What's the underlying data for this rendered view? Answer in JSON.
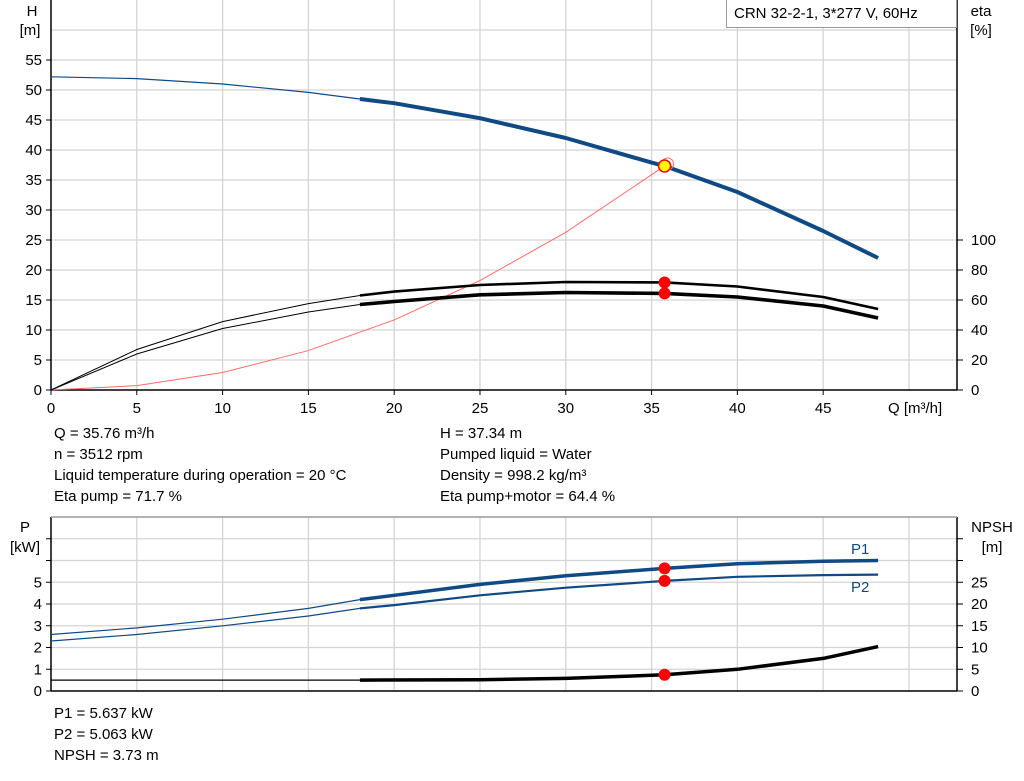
{
  "chart_data": [
    {
      "type": "line",
      "title": "CRN 32-2-1, 3*277 V, 60Hz",
      "xlabel": "Q [m³/h]",
      "ylabel": "H\n[m]",
      "ylabel_line1": "H",
      "ylabel_unit": "[m]",
      "y2label_line1": "eta",
      "y2label_unit": "[%]",
      "xlim": [
        0,
        52.8
      ],
      "ylim": [
        0,
        65
      ],
      "y2lim": [
        0,
        260
      ],
      "xticks": [
        0,
        5,
        10,
        15,
        20,
        25,
        30,
        35,
        40,
        45
      ],
      "yticks": [
        0,
        5,
        10,
        15,
        20,
        25,
        30,
        35,
        40,
        45,
        50,
        55
      ],
      "y2ticks": [
        0,
        20,
        40,
        60,
        80,
        100
      ],
      "grid": true,
      "series": [
        {
          "axis": "H",
          "color": "#0f4a85",
          "x": [
            0,
            5,
            10,
            15,
            18,
            20,
            25,
            30,
            35,
            35.76,
            40,
            45,
            48.2
          ],
          "values": [
            52.2,
            51.9,
            51,
            49.6,
            48.5,
            47.8,
            45.3,
            42,
            37.9,
            37.34,
            33,
            26.5,
            22
          ]
        },
        {
          "axis": "eta",
          "color": "#000000",
          "x": [
            0,
            5,
            10,
            15,
            18,
            20,
            25,
            30,
            35.76,
            40,
            45,
            48.2
          ],
          "values": [
            0,
            27,
            45.6,
            57.6,
            63,
            65.6,
            70,
            72,
            71.7,
            69,
            62,
            54
          ]
        },
        {
          "axis": "eta",
          "color": "#000000",
          "x": [
            0,
            5,
            10,
            15,
            18,
            20,
            25,
            30,
            35.76,
            40,
            45,
            48.2
          ],
          "values": [
            0,
            24,
            41,
            52,
            57,
            59,
            63.5,
            65,
            64.4,
            62,
            56,
            48
          ]
        },
        {
          "axis": "H",
          "color": "#ff0000",
          "x": [
            0,
            5,
            10,
            15,
            20,
            25,
            30,
            35.76
          ],
          "values": [
            0,
            0.73,
            2.92,
            6.57,
            11.68,
            18.25,
            26.28,
            37.34
          ]
        }
      ],
      "operating_point": {
        "Q": 35.76,
        "H": 37.34,
        "eta_pump": 71.7,
        "eta_total": 64.4
      },
      "colors": {
        "head": "#0f4a85",
        "eta": "#000000",
        "system": "#ff0000",
        "point": "#ffff00",
        "marker": "#ff0000"
      }
    },
    {
      "type": "line",
      "ylabel_line1": "P",
      "ylabel_unit": "[kW]",
      "y2label_line1": "NPSH",
      "y2label_unit": "[m]",
      "xlim": [
        0,
        52.8
      ],
      "ylim": [
        0,
        8
      ],
      "y2lim": [
        0,
        40
      ],
      "yticks": [
        0,
        1,
        2,
        3,
        4,
        5
      ],
      "y2ticks": [
        0,
        5,
        10,
        15,
        20,
        25
      ],
      "grid": true,
      "series": [
        {
          "name": "P1",
          "axis": "P",
          "color": "#0f4a85",
          "x": [
            0,
            5,
            10,
            15,
            18,
            20,
            25,
            30,
            35.76,
            40,
            45,
            48.2
          ],
          "values": [
            2.6,
            2.9,
            3.3,
            3.8,
            4.2,
            4.4,
            4.9,
            5.3,
            5.637,
            5.85,
            5.97,
            6.0
          ]
        },
        {
          "name": "P2",
          "axis": "P",
          "color": "#0f4a85",
          "x": [
            0,
            5,
            10,
            15,
            18,
            20,
            25,
            30,
            35.76,
            40,
            45,
            48.2
          ],
          "values": [
            2.3,
            2.6,
            3.0,
            3.45,
            3.8,
            3.95,
            4.4,
            4.75,
            5.063,
            5.25,
            5.33,
            5.35
          ]
        },
        {
          "axis": "NPSH",
          "color": "#000000",
          "x": [
            0,
            10,
            18,
            25,
            30,
            35.76,
            40,
            45,
            48.2
          ],
          "values": [
            2.5,
            2.5,
            2.5,
            2.6,
            2.9,
            3.73,
            5,
            7.5,
            10.2
          ]
        }
      ]
    }
  ],
  "info": {
    "left": [
      "Q = 35.76 m³/h",
      "n = 3512 rpm",
      "Liquid temperature during operation = 20 °C",
      "Eta pump = 71.7 %"
    ],
    "right": [
      "H = 37.34 m",
      "Pumped liquid = Water",
      "Density = 998.2 kg/m³",
      "Eta pump+motor = 64.4 %"
    ],
    "bottom": [
      "P1 = 5.637 kW",
      "P2 = 5.063 kW",
      "NPSH = 3.73 m"
    ]
  }
}
